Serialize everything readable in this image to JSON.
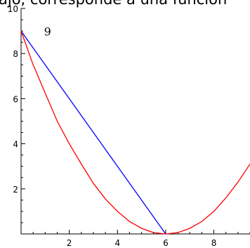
{
  "page": {
    "caption": "ajo, corresponde a una función"
  },
  "chart_data": {
    "type": "line",
    "title": "",
    "xlabel": "",
    "ylabel": "",
    "xlim": [
      0,
      9.5
    ],
    "ylim": [
      0,
      10
    ],
    "x_ticks": [
      2,
      4,
      6,
      8
    ],
    "y_ticks": [
      2,
      4,
      6,
      8,
      10
    ],
    "annotations": [
      {
        "text": "9",
        "x": 1.1,
        "y": 8.8
      }
    ],
    "series": [
      {
        "color": "#0000ff",
        "points": [
          [
            0,
            9
          ],
          [
            6,
            0
          ]
        ]
      },
      {
        "color": "#ff0000",
        "points": [
          [
            0,
            9
          ],
          [
            0.5,
            7.5
          ],
          [
            1,
            6.25
          ],
          [
            1.5,
            5.0
          ],
          [
            2,
            4.0
          ],
          [
            2.5,
            3.1
          ],
          [
            3,
            2.25
          ],
          [
            3.5,
            1.55
          ],
          [
            4,
            1.0
          ],
          [
            4.5,
            0.55
          ],
          [
            5,
            0.25
          ],
          [
            5.5,
            0.06
          ],
          [
            6,
            0
          ],
          [
            6.5,
            0.06
          ],
          [
            7,
            0.25
          ],
          [
            7.5,
            0.55
          ],
          [
            8,
            1.0
          ],
          [
            8.5,
            1.6
          ],
          [
            9,
            2.3
          ],
          [
            9.5,
            3.1
          ]
        ]
      }
    ]
  }
}
